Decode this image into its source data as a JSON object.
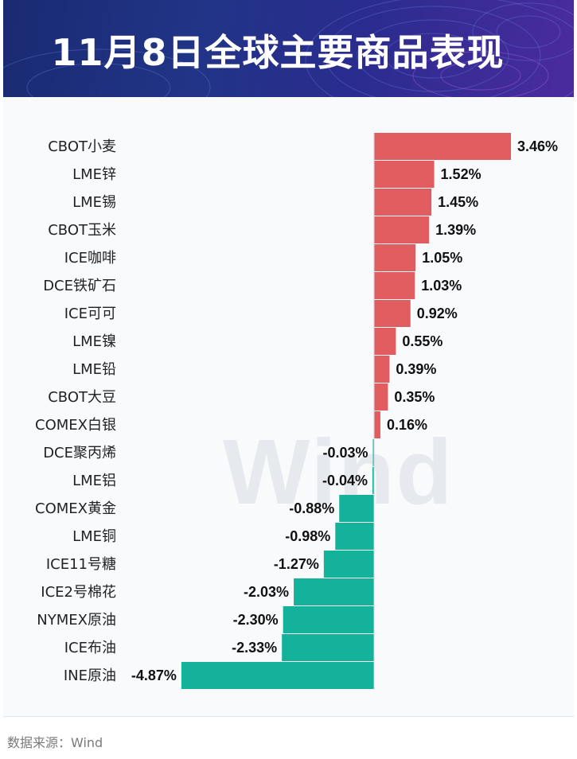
{
  "header": {
    "title": "11月8日全球主要商品表现"
  },
  "watermark": "Wind",
  "source": "数据来源：Wind",
  "colors": {
    "positive": "#e05c5e",
    "negative": "#14b19b",
    "header_start": "#1a2a72",
    "header_end": "#4b2b9e"
  },
  "chart_data": {
    "type": "bar",
    "orientation": "horizontal",
    "title": "11月8日全球主要商品表现",
    "unit": "%",
    "categories": [
      "CBOT小麦",
      "LME锌",
      "LME锡",
      "CBOT玉米",
      "ICE咖啡",
      "DCE铁矿石",
      "ICE可可",
      "LME镍",
      "LME铅",
      "CBOT大豆",
      "COMEX白银",
      "DCE聚丙烯",
      "LME铝",
      "COMEX黄金",
      "LME铜",
      "ICE11号糖",
      "ICE2号棉花",
      "NYMEX原油",
      "ICE布油",
      "INE原油"
    ],
    "values": [
      3.46,
      1.52,
      1.45,
      1.39,
      1.05,
      1.03,
      0.92,
      0.55,
      0.39,
      0.35,
      0.16,
      -0.03,
      -0.04,
      -0.88,
      -0.98,
      -1.27,
      -2.03,
      -2.3,
      -2.33,
      -4.87
    ],
    "labels": [
      "3.46%",
      "1.52%",
      "1.45%",
      "1.39%",
      "1.05%",
      "1.03%",
      "0.92%",
      "0.55%",
      "0.39%",
      "0.35%",
      "0.16%",
      "-0.03%",
      "-0.04%",
      "-0.88%",
      "-0.98%",
      "-1.27%",
      "-2.03%",
      "-2.30%",
      "-2.33%",
      "-4.87%"
    ],
    "xlim": [
      -4.87,
      3.46
    ]
  }
}
